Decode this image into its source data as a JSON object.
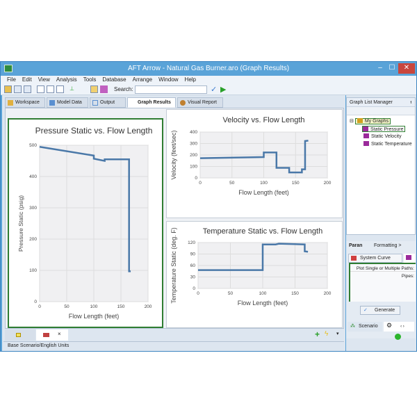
{
  "window": {
    "title": "AFT Arrow - Natural Gas Burner.aro (Graph Results)",
    "minimize": "–",
    "maximize": "☐",
    "close": "✕"
  },
  "menu": [
    "File",
    "Edit",
    "View",
    "Analysis",
    "Tools",
    "Database",
    "Arrange",
    "Window",
    "Help"
  ],
  "toolbar": {
    "search_label": "Search:",
    "search_value": ""
  },
  "tabs": [
    {
      "label": "Workspace"
    },
    {
      "label": "Model Data"
    },
    {
      "label": "Output"
    },
    {
      "label": "Graph Results",
      "active": true
    },
    {
      "label": "Visual Report"
    }
  ],
  "status": "Base Scenario/English Units",
  "graph_list_manager": {
    "title": "Graph List Manager",
    "root": "My Graphs",
    "items": [
      "Static Pressure",
      "Static Velocity",
      "Static Temperature"
    ],
    "selected": "Static Pressure"
  },
  "lower_panel": {
    "tab1": "Paran",
    "tab2": "Formatting >",
    "subtab": "System Curve",
    "plot_label": "Plot Single or Multiple Paths:",
    "pipes_label": "Pipes:",
    "generate": "Generate",
    "bottom_tab": "Scenario"
  },
  "colors": {
    "line": "#4a78a8",
    "selected_border": "#2f7d32",
    "title_bar": "#5aa3d8"
  },
  "chart_data": [
    {
      "type": "line",
      "title": "Pressure Static vs. Flow Length",
      "xlabel": "Flow Length (feet)",
      "ylabel": "Pressure Static (psig)",
      "xlim": [
        0,
        200
      ],
      "ylim": [
        0,
        500
      ],
      "xticks": [
        0,
        50,
        100,
        150,
        200
      ],
      "yticks": [
        0,
        100,
        200,
        300,
        400,
        500
      ],
      "grid": true,
      "x": [
        0,
        100,
        100,
        120,
        120,
        165,
        165,
        168
      ],
      "y": [
        495,
        467,
        457,
        450,
        455,
        455,
        97,
        97
      ]
    },
    {
      "type": "line",
      "title": "Velocity vs. Flow Length",
      "xlabel": "Flow Length (feet)",
      "ylabel": "Velocity (feet/sec)",
      "xlim": [
        0,
        200
      ],
      "ylim": [
        0,
        400
      ],
      "xticks": [
        0,
        50,
        100,
        150,
        200
      ],
      "yticks": [
        0,
        100,
        200,
        300,
        400
      ],
      "grid": true,
      "x": [
        0,
        100,
        100,
        120,
        120,
        140,
        140,
        160,
        160,
        165,
        165,
        170
      ],
      "y": [
        172,
        182,
        222,
        222,
        88,
        88,
        48,
        48,
        75,
        75,
        322,
        325
      ]
    },
    {
      "type": "line",
      "title": "Temperature Static vs. Flow Length",
      "xlabel": "Flow Length (feet)",
      "ylabel": "Temperature Static (deg. F)",
      "xlim": [
        0,
        200
      ],
      "ylim": [
        0,
        120
      ],
      "xticks": [
        0,
        50,
        100,
        150,
        200
      ],
      "yticks": [
        0,
        30,
        60,
        90,
        120
      ],
      "grid": true,
      "x": [
        0,
        100,
        100,
        120,
        125,
        150,
        165,
        165,
        170
      ],
      "y": [
        48,
        48,
        115,
        115,
        117,
        116,
        115,
        97,
        96
      ]
    }
  ]
}
